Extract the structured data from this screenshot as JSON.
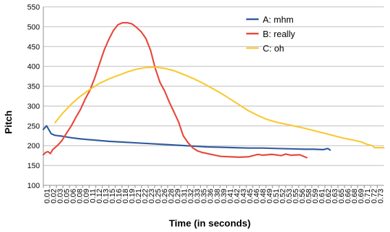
{
  "chart_data": {
    "type": "line",
    "xlabel": "Time (in seconds)",
    "ylabel": "Pitch",
    "ylim": [
      100,
      550
    ],
    "y_ticks": [
      100,
      150,
      200,
      250,
      300,
      350,
      400,
      450,
      500,
      550
    ],
    "x_range": [
      0.01,
      0.74
    ],
    "x_tick_labels": [
      "0.01",
      "0.02",
      "0.03",
      "0.05",
      "0.06",
      "0.08",
      "0.09",
      "0.11",
      "0.12",
      "0.13",
      "0.15",
      "0.16",
      "0.18",
      "0.19",
      "0.21",
      "0.22",
      "0.23",
      "0.25",
      "0.26",
      "0.28",
      "0.29",
      "0.31",
      "0.32",
      "0.33",
      "0.35",
      "0.36",
      "0.38",
      "0.39",
      "0.41",
      "0.42",
      "0.43",
      "0.45",
      "0.46",
      "0.48",
      "0.49",
      "0.51",
      "0.52",
      "0.53",
      "0.55",
      "0.56",
      "0.58",
      "0.59",
      "0.61",
      "0.62",
      "0.63",
      "0.65",
      "0.66",
      "0.68",
      "0.69",
      "0.71",
      "0.72",
      "0.73"
    ],
    "grid": true,
    "legend_position": "top-right",
    "series": [
      {
        "name": "A: mhm",
        "color": "#2e5a9c",
        "points": [
          [
            0.01,
            241
          ],
          [
            0.017,
            250
          ],
          [
            0.02,
            244
          ],
          [
            0.027,
            230
          ],
          [
            0.035,
            226
          ],
          [
            0.05,
            224
          ],
          [
            0.07,
            220
          ],
          [
            0.09,
            217
          ],
          [
            0.12,
            214
          ],
          [
            0.15,
            211
          ],
          [
            0.18,
            209
          ],
          [
            0.21,
            207
          ],
          [
            0.24,
            205
          ],
          [
            0.27,
            203
          ],
          [
            0.3,
            201
          ],
          [
            0.33,
            199
          ],
          [
            0.36,
            197
          ],
          [
            0.39,
            196
          ],
          [
            0.42,
            195
          ],
          [
            0.45,
            194
          ],
          [
            0.48,
            194
          ],
          [
            0.51,
            193
          ],
          [
            0.54,
            192
          ],
          [
            0.57,
            191
          ],
          [
            0.59,
            191
          ],
          [
            0.61,
            190
          ],
          [
            0.62,
            193
          ],
          [
            0.625,
            189
          ]
        ]
      },
      {
        "name": "B: really",
        "color": "#e8463a",
        "points": [
          [
            0.01,
            177
          ],
          [
            0.015,
            183
          ],
          [
            0.02,
            185
          ],
          [
            0.025,
            180
          ],
          [
            0.03,
            190
          ],
          [
            0.04,
            200
          ],
          [
            0.05,
            213
          ],
          [
            0.06,
            232
          ],
          [
            0.07,
            250
          ],
          [
            0.08,
            272
          ],
          [
            0.09,
            292
          ],
          [
            0.1,
            318
          ],
          [
            0.11,
            340
          ],
          [
            0.12,
            370
          ],
          [
            0.13,
            405
          ],
          [
            0.14,
            440
          ],
          [
            0.15,
            467
          ],
          [
            0.16,
            490
          ],
          [
            0.17,
            505
          ],
          [
            0.18,
            510
          ],
          [
            0.19,
            510
          ],
          [
            0.2,
            507
          ],
          [
            0.21,
            498
          ],
          [
            0.22,
            487
          ],
          [
            0.23,
            470
          ],
          [
            0.24,
            440
          ],
          [
            0.25,
            395
          ],
          [
            0.26,
            360
          ],
          [
            0.27,
            338
          ],
          [
            0.28,
            310
          ],
          [
            0.29,
            285
          ],
          [
            0.3,
            260
          ],
          [
            0.31,
            225
          ],
          [
            0.32,
            208
          ],
          [
            0.33,
            195
          ],
          [
            0.34,
            187
          ],
          [
            0.35,
            183
          ],
          [
            0.37,
            178
          ],
          [
            0.39,
            173
          ],
          [
            0.41,
            172
          ],
          [
            0.43,
            171
          ],
          [
            0.45,
            172
          ],
          [
            0.46,
            175
          ],
          [
            0.47,
            178
          ],
          [
            0.48,
            176
          ],
          [
            0.5,
            178
          ],
          [
            0.52,
            175
          ],
          [
            0.53,
            179
          ],
          [
            0.54,
            176
          ],
          [
            0.56,
            177
          ],
          [
            0.57,
            172
          ],
          [
            0.575,
            170
          ]
        ]
      },
      {
        "name": "C: oh",
        "color": "#f9c933",
        "points": [
          [
            0.035,
            258
          ],
          [
            0.05,
            280
          ],
          [
            0.07,
            305
          ],
          [
            0.09,
            325
          ],
          [
            0.11,
            342
          ],
          [
            0.13,
            357
          ],
          [
            0.15,
            368
          ],
          [
            0.17,
            377
          ],
          [
            0.19,
            386
          ],
          [
            0.21,
            393
          ],
          [
            0.23,
            397
          ],
          [
            0.25,
            398
          ],
          [
            0.27,
            395
          ],
          [
            0.29,
            389
          ],
          [
            0.31,
            380
          ],
          [
            0.33,
            370
          ],
          [
            0.35,
            359
          ],
          [
            0.37,
            346
          ],
          [
            0.39,
            333
          ],
          [
            0.41,
            318
          ],
          [
            0.43,
            303
          ],
          [
            0.45,
            288
          ],
          [
            0.47,
            276
          ],
          [
            0.49,
            266
          ],
          [
            0.51,
            259
          ],
          [
            0.53,
            254
          ],
          [
            0.55,
            249
          ],
          [
            0.57,
            244
          ],
          [
            0.59,
            238
          ],
          [
            0.61,
            232
          ],
          [
            0.63,
            226
          ],
          [
            0.65,
            220
          ],
          [
            0.67,
            215
          ],
          [
            0.69,
            210
          ],
          [
            0.705,
            203
          ],
          [
            0.715,
            200
          ],
          [
            0.72,
            195
          ],
          [
            0.74,
            195
          ]
        ]
      }
    ]
  }
}
